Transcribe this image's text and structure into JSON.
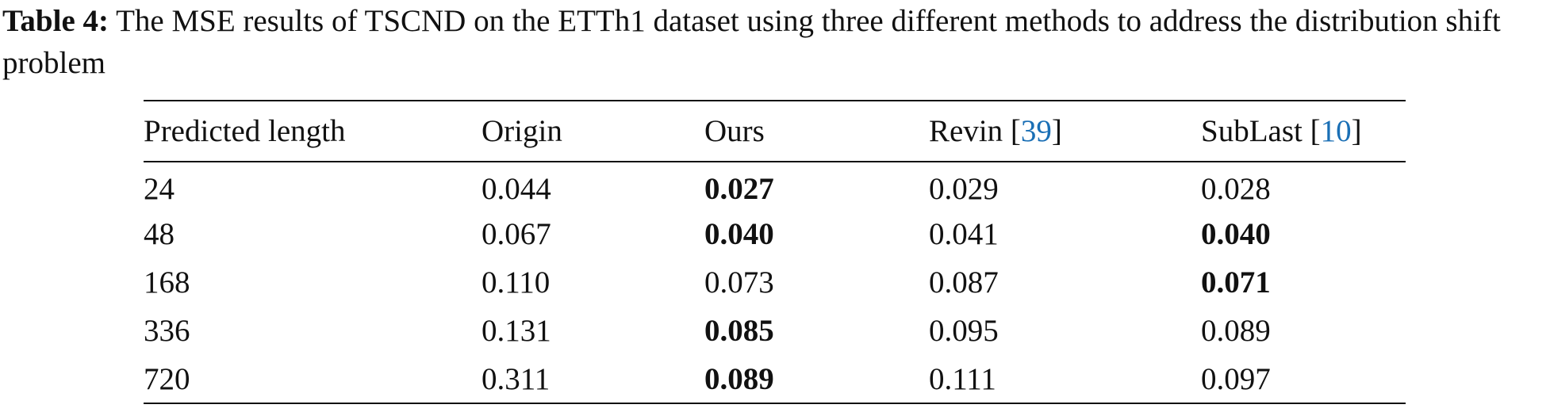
{
  "caption": {
    "label": "Table 4:",
    "text": "The MSE results of TSCND on the ETTh1 dataset using three different methods to address the distribution shift problem"
  },
  "table": {
    "headers": [
      {
        "text": "Predicted length"
      },
      {
        "text": "Origin"
      },
      {
        "text": "Ours"
      },
      {
        "text": "Revin [",
        "link": "39",
        "after": "]"
      },
      {
        "text": "SubLast [",
        "link": "10",
        "after": "]"
      }
    ],
    "rows": [
      [
        "24",
        "0.044",
        "0.027",
        "0.029",
        "0.028"
      ],
      [
        "48",
        "0.067",
        "0.040",
        "0.041",
        "0.040"
      ],
      [
        "168",
        "0.110",
        "0.073",
        "0.087",
        "0.071"
      ],
      [
        "336",
        "0.131",
        "0.085",
        "0.095",
        "0.089"
      ],
      [
        "720",
        "0.311",
        "0.089",
        "0.111",
        "0.097"
      ]
    ],
    "bold_cells": [
      [
        0,
        2
      ],
      [
        1,
        2
      ],
      [
        1,
        4
      ],
      [
        2,
        4
      ],
      [
        3,
        2
      ],
      [
        4,
        2
      ]
    ],
    "link_color": "#1a6fb5"
  }
}
